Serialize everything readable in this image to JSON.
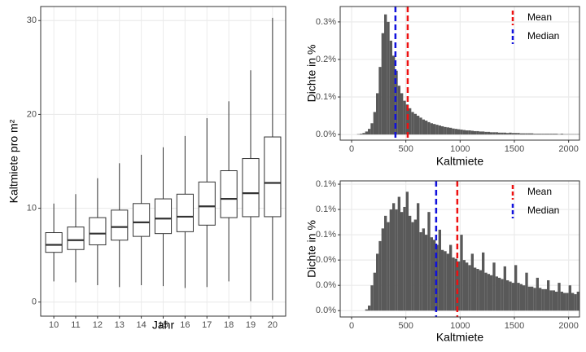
{
  "chart_data": [
    {
      "type": "box",
      "xlabel": "Jahr",
      "ylabel": "Kaltmiete pro m²",
      "categories": [
        "10",
        "11",
        "12",
        "13",
        "14",
        "15",
        "16",
        "17",
        "18",
        "19",
        "20"
      ],
      "boxes": [
        {
          "low": 2.2,
          "q1": 5.3,
          "median": 6.1,
          "q3": 7.4,
          "high": 10.5
        },
        {
          "low": 2.1,
          "q1": 5.6,
          "median": 6.6,
          "q3": 8.0,
          "high": 11.5
        },
        {
          "low": 1.8,
          "q1": 6.1,
          "median": 7.3,
          "q3": 9.0,
          "high": 13.2
        },
        {
          "low": 1.6,
          "q1": 6.6,
          "median": 8.0,
          "q3": 9.8,
          "high": 14.8
        },
        {
          "low": 1.8,
          "q1": 7.0,
          "median": 8.5,
          "q3": 10.5,
          "high": 15.7
        },
        {
          "low": 1.7,
          "q1": 7.3,
          "median": 8.9,
          "q3": 11.0,
          "high": 16.5
        },
        {
          "low": 1.5,
          "q1": 7.5,
          "median": 9.1,
          "q3": 11.5,
          "high": 17.7
        },
        {
          "low": 1.6,
          "q1": 8.2,
          "median": 10.2,
          "q3": 12.8,
          "high": 19.6
        },
        {
          "low": 2.2,
          "q1": 9.0,
          "median": 11.0,
          "q3": 14.0,
          "high": 21.4
        },
        {
          "low": 0.1,
          "q1": 9.1,
          "median": 11.6,
          "q3": 15.3,
          "high": 24.7
        },
        {
          "low": 0.2,
          "q1": 9.1,
          "median": 12.7,
          "q3": 17.6,
          "high": 30.3
        }
      ],
      "ylim": [
        -1.5,
        31.5
      ],
      "yticks": [
        0,
        10,
        20,
        30
      ],
      "grid": true
    },
    {
      "type": "histogram",
      "xlabel": "Kaltmiete",
      "ylabel": "Dichte in %",
      "color": "#595959",
      "bins": [
        50,
        75,
        100,
        125,
        150,
        175,
        200,
        225,
        250,
        275,
        300,
        325,
        350,
        375,
        400,
        425,
        450,
        475,
        500,
        525,
        550,
        575,
        600,
        625,
        650,
        675,
        700,
        725,
        750,
        775,
        800,
        825,
        850,
        875,
        900,
        925,
        950,
        975,
        1000,
        1025,
        1050,
        1075,
        1100,
        1125,
        1150,
        1175,
        1200,
        1225,
        1250,
        1275,
        1300,
        1325,
        1350,
        1375,
        1400,
        1425,
        1450,
        1475,
        1500,
        1525,
        1550,
        1575,
        1600,
        1625,
        1650,
        1675,
        1700,
        1725,
        1750,
        1775,
        1800,
        1825,
        1850,
        1875,
        1900,
        1925,
        1950,
        1975,
        2000,
        2025,
        2050,
        2075,
        2100
      ],
      "values": [
        0.001,
        0.002,
        0.004,
        0.008,
        0.015,
        0.03,
        0.06,
        0.11,
        0.18,
        0.27,
        0.32,
        0.3,
        0.25,
        0.21,
        0.17,
        0.13,
        0.11,
        0.09,
        0.08,
        0.07,
        0.06,
        0.055,
        0.05,
        0.045,
        0.04,
        0.037,
        0.033,
        0.03,
        0.028,
        0.026,
        0.024,
        0.022,
        0.02,
        0.019,
        0.018,
        0.016,
        0.015,
        0.014,
        0.013,
        0.012,
        0.011,
        0.011,
        0.01,
        0.009,
        0.009,
        0.008,
        0.008,
        0.007,
        0.007,
        0.006,
        0.006,
        0.006,
        0.005,
        0.005,
        0.005,
        0.004,
        0.005,
        0.004,
        0.004,
        0.004,
        0.003,
        0.003,
        0.003,
        0.003,
        0.003,
        0.002,
        0.002,
        0.002,
        0.002,
        0.002,
        0.002,
        0.002,
        0.002,
        0.002,
        0.001,
        0.002,
        0.001,
        0.001,
        0.001,
        0.001,
        0.001,
        0.001
      ],
      "xlim": [
        -105,
        2100
      ],
      "xticks": [
        0,
        500,
        1000,
        1500,
        2000
      ],
      "ylim": [
        -0.015,
        0.341
      ],
      "yticks": [
        {
          "value": 0,
          "label": "0.0%"
        },
        {
          "value": 0.1,
          "label": "0.1%"
        },
        {
          "value": 0.2,
          "label": "0.2%"
        },
        {
          "value": 0.3,
          "label": "0.3%"
        }
      ],
      "vlines": [
        {
          "name": "Mean",
          "color": "#ee1111",
          "value": 517
        },
        {
          "name": "Median",
          "color": "#1111dd",
          "value": 404
        }
      ],
      "legend": "top-right",
      "grid": true
    },
    {
      "type": "histogram",
      "xlabel": "Kaltmiete",
      "ylabel": "Dichte in %",
      "color": "#595959",
      "bins": [
        50,
        75,
        100,
        125,
        150,
        175,
        200,
        225,
        250,
        275,
        300,
        325,
        350,
        375,
        400,
        425,
        450,
        475,
        500,
        525,
        550,
        575,
        600,
        625,
        650,
        675,
        700,
        725,
        750,
        775,
        800,
        825,
        850,
        875,
        900,
        925,
        950,
        975,
        1000,
        1025,
        1050,
        1075,
        1100,
        1125,
        1150,
        1175,
        1200,
        1225,
        1250,
        1275,
        1300,
        1325,
        1350,
        1375,
        1400,
        1425,
        1450,
        1475,
        1500,
        1525,
        1550,
        1575,
        1600,
        1625,
        1650,
        1675,
        1700,
        1725,
        1750,
        1775,
        1800,
        1825,
        1850,
        1875,
        1900,
        1925,
        1950,
        1975,
        2000,
        2025,
        2050,
        2075,
        2100
      ],
      "values": [
        0,
        0,
        0,
        0.001,
        0.004,
        0.02,
        0.03,
        0.045,
        0.055,
        0.065,
        0.075,
        0.07,
        0.08,
        0.085,
        0.08,
        0.09,
        0.078,
        0.082,
        0.094,
        0.075,
        0.07,
        0.072,
        0.085,
        0.062,
        0.065,
        0.06,
        0.078,
        0.058,
        0.056,
        0.052,
        0.064,
        0.048,
        0.047,
        0.045,
        0.052,
        0.042,
        0.041,
        0.039,
        0.06,
        0.04,
        0.038,
        0.036,
        0.045,
        0.034,
        0.033,
        0.032,
        0.046,
        0.03,
        0.029,
        0.028,
        0.038,
        0.027,
        0.026,
        0.025,
        0.035,
        0.024,
        0.023,
        0.022,
        0.036,
        0.022,
        0.021,
        0.02,
        0.03,
        0.019,
        0.019,
        0.018,
        0.026,
        0.018,
        0.017,
        0.017,
        0.024,
        0.016,
        0.016,
        0.015,
        0.022,
        0.015,
        0.014,
        0.014,
        0.02,
        0.014,
        0.013,
        0.015
      ],
      "xlim": [
        -105,
        2100
      ],
      "xticks": [
        0,
        500,
        1000,
        1500,
        2000
      ],
      "ylim": [
        -0.005,
        0.1026
      ],
      "yticks": [
        {
          "value": 0,
          "label": "0.0%"
        },
        {
          "value": 0.02,
          "label": "0.0%"
        },
        {
          "value": 0.04,
          "label": "0.0%"
        },
        {
          "value": 0.06,
          "label": "0.1%"
        },
        {
          "value": 0.08,
          "label": "0.1%"
        },
        {
          "value": 0.1,
          "label": "0.1%"
        }
      ],
      "vlines": [
        {
          "name": "Mean",
          "color": "#ee1111",
          "value": 974
        },
        {
          "name": "Median",
          "color": "#1111dd",
          "value": 779
        }
      ],
      "legend": "top-right",
      "grid": true
    }
  ]
}
